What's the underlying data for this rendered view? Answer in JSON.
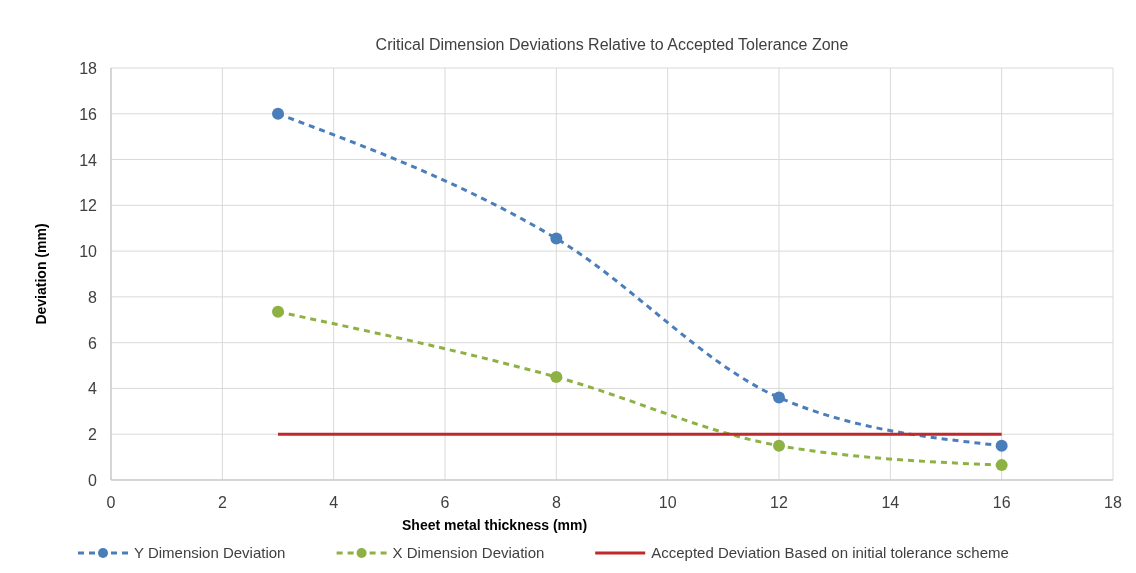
{
  "chart_data": {
    "type": "line",
    "title": "Critical Dimension Deviations Relative to Accepted Tolerance Zone",
    "xlabel": "Sheet metal thickness (mm)",
    "ylabel": "Deviation (mm)",
    "x": [
      3,
      8,
      12,
      16
    ],
    "series": [
      {
        "name": "Y Dimension Deviation",
        "color": "#4a7ebb",
        "values": [
          16,
          10.55,
          3.6,
          1.5
        ],
        "marker": "circle",
        "line_style": "dashed"
      },
      {
        "name": "X Dimension Deviation",
        "color": "#8db243",
        "values": [
          7.35,
          4.5,
          1.5,
          0.65
        ],
        "marker": "circle",
        "line_style": "dashed"
      },
      {
        "name": "Accepted Deviation Based on initial tolerance scheme",
        "color": "#c0292b",
        "values": [
          2,
          2,
          2,
          2
        ],
        "marker": "none",
        "line_style": "solid"
      }
    ],
    "xlim": [
      0,
      18
    ],
    "xticks": [
      0,
      2,
      4,
      6,
      8,
      10,
      12,
      14,
      16,
      18
    ],
    "ylim": [
      0,
      18
    ],
    "yticks": [
      0,
      2,
      4,
      6,
      8,
      10,
      12,
      14,
      16,
      18
    ],
    "grid": true,
    "legend": "bottom"
  }
}
